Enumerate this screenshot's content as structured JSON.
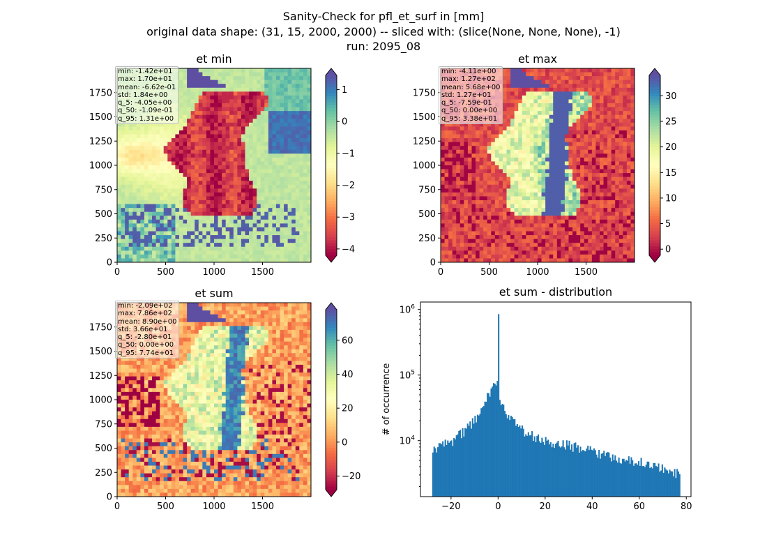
{
  "figure": {
    "title_lines": [
      "Sanity-Check for pfl_et_surf in [mm]",
      "original data shape: (31, 15, 2000, 2000) -- sliced with: (slice(None, None, None), -1)",
      "run: 2095_08"
    ]
  },
  "chart_data": [
    {
      "type": "heatmap",
      "title": "et min",
      "colormap": "Spectral",
      "x_ticks": [
        "0",
        "500",
        "1000",
        "1500"
      ],
      "y_ticks": [
        "0",
        "250",
        "500",
        "750",
        "1000",
        "1250",
        "1500",
        "1750"
      ],
      "xlim": [
        0,
        2000
      ],
      "ylim": [
        0,
        2000
      ],
      "colorbar": {
        "min": -4.2,
        "max": 1.45,
        "ticks": [
          1,
          0,
          -1,
          -2,
          -3,
          -4
        ],
        "tick_labels": [
          "1",
          "0",
          "−1",
          "−2",
          "−3",
          "−4"
        ],
        "extend": "both"
      },
      "stats": [
        "min: -1.42e+01",
        "max: 1.70e+01",
        "mean: -6.62e-01",
        "std: 1.84e+00",
        "q_5: -4.05e+00",
        "q_50: -1.09e-01",
        "q_95: 1.31e+00"
      ]
    },
    {
      "type": "heatmap",
      "title": "et max",
      "colormap": "Spectral",
      "x_ticks": [
        "0",
        "500",
        "1000",
        "1500"
      ],
      "y_ticks": [
        "0",
        "250",
        "500",
        "750",
        "1000",
        "1250",
        "1500",
        "1750"
      ],
      "xlim": [
        0,
        2000
      ],
      "ylim": [
        0,
        2000
      ],
      "colorbar": {
        "min": -1.2,
        "max": 34,
        "ticks": [
          30,
          25,
          20,
          15,
          10,
          5,
          0
        ],
        "tick_labels": [
          "30",
          "25",
          "20",
          "15",
          "10",
          "5",
          "0"
        ],
        "extend": "both"
      },
      "stats": [
        "min: -4.11e+00",
        "max: 1.27e+02",
        "mean: 5.68e+00",
        "std: 1.27e+01",
        "q_5: -7.59e-01",
        "q_50: 0.00e+00",
        "q_95: 3.38e+01"
      ]
    },
    {
      "type": "heatmap",
      "title": "et sum",
      "colormap": "Spectral",
      "x_ticks": [
        "0",
        "500",
        "1000",
        "1500"
      ],
      "y_ticks": [
        "0",
        "250",
        "500",
        "750",
        "1000",
        "1250",
        "1500",
        "1750"
      ],
      "xlim": [
        0,
        2000
      ],
      "ylim": [
        0,
        2000
      ],
      "colorbar": {
        "min": -28,
        "max": 78,
        "ticks": [
          60,
          40,
          20,
          0,
          -20
        ],
        "tick_labels": [
          "60",
          "40",
          "20",
          "0",
          "−20"
        ],
        "extend": "both"
      },
      "stats": [
        "min: -2.09e+02",
        "max: 7.86e+02",
        "mean: 8.90e+00",
        "std: 3.66e+01",
        "q_5: -2.80e+01",
        "q_50: 0.00e+00",
        "q_95: 7.74e+01"
      ]
    },
    {
      "type": "bar",
      "title": "et sum - distribution",
      "ylabel": "# of occurrence",
      "yscale": "log",
      "xlim": [
        -33,
        82
      ],
      "ylim": [
        1400,
        1300000
      ],
      "x_ticks": [
        -20,
        0,
        20,
        40,
        60,
        80
      ],
      "x_tick_labels": [
        "−20",
        "0",
        "20",
        "40",
        "60",
        "80"
      ],
      "y_ticks": [
        10000,
        100000,
        1000000
      ],
      "y_tick_labels": [
        "10^4",
        "10^5",
        "10^6"
      ],
      "bin_range": [
        -28,
        77.4
      ],
      "bar_color": "#1f77b4",
      "spike": {
        "x": 0,
        "value": 850000
      },
      "envelope": [
        [
          -28,
          7500
        ],
        [
          -20,
          9500
        ],
        [
          -15,
          13500
        ],
        [
          -10,
          20000
        ],
        [
          -7,
          30000
        ],
        [
          -5,
          42000
        ],
        [
          -3,
          60000
        ],
        [
          -1,
          82000
        ],
        [
          0,
          65000
        ],
        [
          1,
          38000
        ],
        [
          3,
          28000
        ],
        [
          5,
          21000
        ],
        [
          10,
          15000
        ],
        [
          15,
          11500
        ],
        [
          20,
          10000
        ],
        [
          30,
          8500
        ],
        [
          40,
          7000
        ],
        [
          50,
          5500
        ],
        [
          60,
          4700
        ],
        [
          70,
          3900
        ],
        [
          77.4,
          3000
        ]
      ]
    }
  ]
}
